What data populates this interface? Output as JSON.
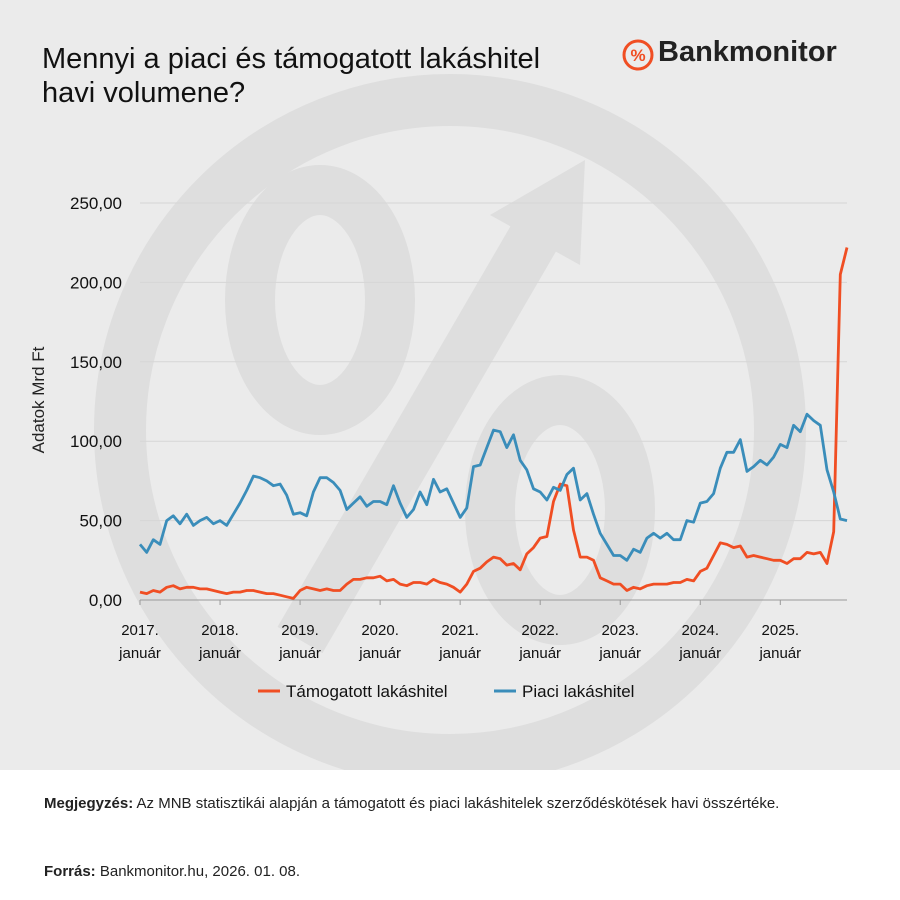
{
  "brand": "Bankmonitor",
  "chart_data": {
    "type": "line",
    "title": "Mennyi a piaci és támogatott lakáshitel havi volumene?",
    "ylabel": "Adatok Mrd Ft",
    "categories": [
      "2017. január",
      null,
      null,
      null,
      null,
      null,
      null,
      null,
      null,
      null,
      null,
      null,
      "2018. január",
      null,
      null,
      null,
      null,
      null,
      null,
      null,
      null,
      null,
      null,
      null,
      "2019. január",
      null,
      null,
      null,
      null,
      null,
      null,
      null,
      null,
      null,
      null,
      null,
      "2020. január",
      null,
      null,
      null,
      null,
      null,
      null,
      null,
      null,
      null,
      null,
      null,
      "2021. január",
      null,
      null,
      null,
      null,
      null,
      null,
      null,
      null,
      null,
      null,
      null,
      "2022. január",
      null,
      null,
      null,
      null,
      null,
      null,
      null,
      null,
      null,
      null,
      null,
      "2023. január",
      null,
      null,
      null,
      null,
      null,
      null,
      null,
      null,
      null,
      null,
      null,
      "2024. január",
      null,
      null,
      null,
      null,
      null,
      null,
      null,
      null,
      null,
      null,
      null,
      "2025. január",
      null,
      null,
      null,
      null,
      null,
      null,
      null,
      null,
      null,
      null
    ],
    "series": [
      {
        "name": "Támogatott lakáshitel",
        "color": "#f04e23",
        "values": [
          5,
          4,
          6,
          5,
          8,
          9,
          7,
          8,
          8,
          7,
          7,
          6,
          5,
          4,
          5,
          5,
          6,
          6,
          5,
          4,
          4,
          3,
          2,
          1,
          6,
          8,
          7,
          6,
          7,
          6,
          6,
          10,
          13,
          13,
          14,
          14,
          15,
          12,
          13,
          10,
          9,
          11,
          11,
          10,
          13,
          11,
          10,
          8,
          5,
          10,
          18,
          20,
          24,
          27,
          26,
          22,
          23,
          19,
          29,
          33,
          39,
          40,
          62,
          73,
          72,
          44,
          27,
          27,
          25,
          14,
          12,
          10,
          10,
          6,
          8,
          7,
          9,
          10,
          10,
          10,
          11,
          11,
          13,
          12,
          18,
          20,
          28,
          36,
          35,
          33,
          34,
          27,
          28,
          27,
          26,
          25,
          25,
          23,
          26,
          26,
          30,
          29,
          30,
          23,
          43,
          205,
          222
        ]
      },
      {
        "name": "Piaci lakáshitel",
        "color": "#3a8dba",
        "values": [
          35,
          30,
          38,
          35,
          50,
          53,
          48,
          54,
          47,
          50,
          52,
          48,
          50,
          47,
          54,
          61,
          69,
          78,
          77,
          75,
          72,
          73,
          66,
          54,
          55,
          53,
          68,
          77,
          77,
          74,
          69,
          57,
          61,
          65,
          59,
          62,
          62,
          60,
          72,
          61,
          52,
          57,
          68,
          60,
          76,
          68,
          70,
          61,
          52,
          58,
          84,
          85,
          96,
          107,
          106,
          96,
          104,
          88,
          82,
          70,
          68,
          63,
          71,
          69,
          79,
          83,
          63,
          67,
          54,
          42,
          35,
          28,
          28,
          25,
          32,
          30,
          39,
          42,
          39,
          42,
          38,
          38,
          50,
          49,
          61,
          62,
          67,
          83,
          93,
          93,
          101,
          81,
          84,
          88,
          85,
          90,
          98,
          96,
          110,
          106,
          117,
          113,
          110,
          82,
          68,
          51,
          50
        ]
      }
    ],
    "ylim": [
      0,
      250
    ],
    "yticks": [
      {
        "value": 0,
        "label": "0,00"
      },
      {
        "value": 50,
        "label": "50,00"
      },
      {
        "value": 100,
        "label": "100,00"
      },
      {
        "value": 150,
        "label": "150,00"
      },
      {
        "value": 200,
        "label": "200,00"
      },
      {
        "value": 250,
        "label": "250,00"
      }
    ],
    "grid": true
  },
  "footer": {
    "note_label": "Megjegyzés:",
    "note_text": "Az MNB statisztikái alapján a támogatott és piaci lakáshitelek szerződéskötések havi összértéke.",
    "source_label": "Forrás:",
    "source_text": "Bankmonitor.hu, 2026. 01. 08."
  }
}
